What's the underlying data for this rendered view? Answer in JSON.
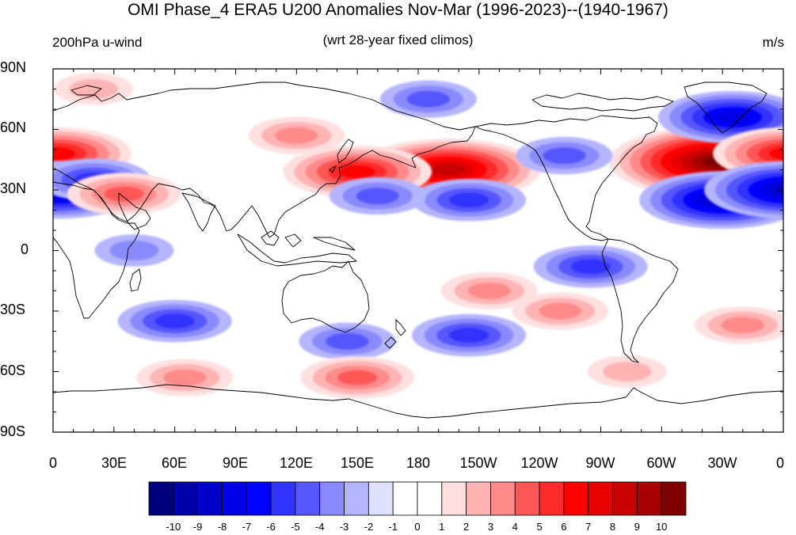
{
  "title": "OMI Phase_4 ERA5 U200 Anomalies Nov-Mar (1996-2023)--(1940-1967)",
  "left_subtitle": "200hPa u-wind",
  "center_subtitle": "(wrt 28-year fixed climos)",
  "units": "m/s",
  "y_axis_labels": [
    "90N",
    "60N",
    "30N",
    "0",
    "30S",
    "60S",
    "90S"
  ],
  "x_axis_labels": [
    "0",
    "30E",
    "60E",
    "90E",
    "120E",
    "150E",
    "180",
    "150W",
    "120W",
    "90W",
    "60W",
    "30W",
    "0"
  ],
  "colorbar": {
    "labels": [
      "-10",
      "-9",
      "-8",
      "-7",
      "-6",
      "-5",
      "-4",
      "-3",
      "-2",
      "-1",
      "0",
      "1",
      "2",
      "3",
      "4",
      "5",
      "6",
      "7",
      "8",
      "9",
      "10"
    ],
    "colors": [
      "#00007f",
      "#0000a6",
      "#0000c8",
      "#0000e6",
      "#0000ff",
      "#3333ff",
      "#5757ff",
      "#8a8aff",
      "#b4b4ff",
      "#e0e0ff",
      "#ffffff",
      "#ffffff",
      "#ffe0e0",
      "#ffb4b4",
      "#ff8a8a",
      "#ff5757",
      "#ff2a2a",
      "#ff0000",
      "#e60000",
      "#c80000",
      "#a60000",
      "#7f0000"
    ]
  },
  "map": {
    "projection": "cylindrical equidistant",
    "lon_range": [
      0,
      360
    ],
    "lat_range": [
      -90,
      90
    ],
    "anomaly_features": [
      {
        "lon": 195,
        "lat": 40,
        "value": 8
      },
      {
        "lon": 150,
        "lat": 39,
        "value": 6
      },
      {
        "lon": 328,
        "lat": 44,
        "value": 10
      },
      {
        "lon": 330,
        "lat": 25,
        "value": -7
      },
      {
        "lon": 335,
        "lat": 66,
        "value": -6
      },
      {
        "lon": 2,
        "lat": 48,
        "value": 6
      },
      {
        "lon": 2,
        "lat": 30,
        "value": -7
      },
      {
        "lon": 20,
        "lat": 35,
        "value": -4
      },
      {
        "lon": 35,
        "lat": 28,
        "value": 4
      },
      {
        "lon": 205,
        "lat": 25,
        "value": -4
      },
      {
        "lon": 160,
        "lat": 27,
        "value": -3
      },
      {
        "lon": 252,
        "lat": 47,
        "value": -3
      },
      {
        "lon": 185,
        "lat": 75,
        "value": -3
      },
      {
        "lon": 120,
        "lat": 57,
        "value": 3
      },
      {
        "lon": 40,
        "lat": 0,
        "value": -2
      },
      {
        "lon": 265,
        "lat": -8,
        "value": -4
      },
      {
        "lon": 60,
        "lat": -35,
        "value": -4
      },
      {
        "lon": 205,
        "lat": -42,
        "value": -4
      },
      {
        "lon": 145,
        "lat": -45,
        "value": -3
      },
      {
        "lon": 215,
        "lat": -20,
        "value": 3
      },
      {
        "lon": 340,
        "lat": -37,
        "value": 3
      },
      {
        "lon": 65,
        "lat": -63,
        "value": 3
      },
      {
        "lon": 150,
        "lat": -63,
        "value": 4
      },
      {
        "lon": 20,
        "lat": 80,
        "value": 2
      },
      {
        "lon": 283,
        "lat": -60,
        "value": 2
      },
      {
        "lon": 250,
        "lat": -30,
        "value": 3
      }
    ]
  }
}
